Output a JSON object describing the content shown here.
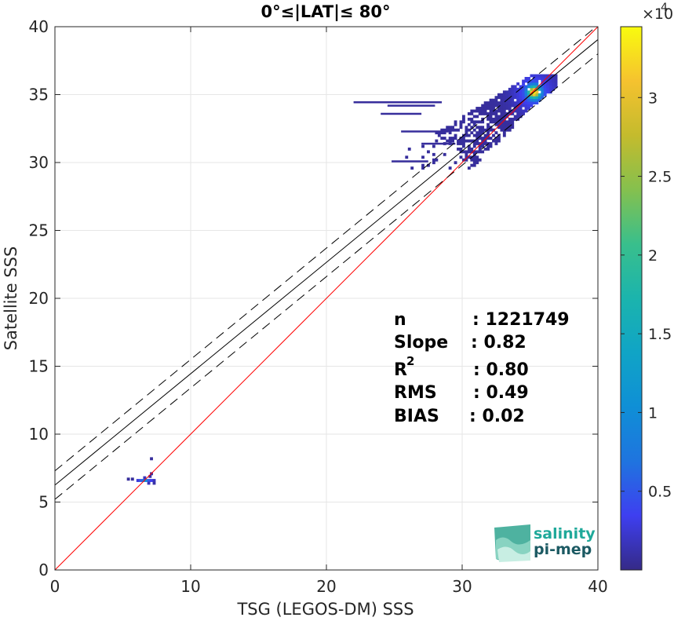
{
  "chart_data": {
    "type": "heatmap",
    "title": "0°≤|LAT|≤ 80°",
    "xlabel": "TSG (LEGOS-DM) SSS",
    "ylabel": "Satellite SSS",
    "xlim": [
      0,
      40
    ],
    "ylim": [
      0,
      40
    ],
    "xticks": [
      "0",
      "10",
      "20",
      "30",
      "40"
    ],
    "yticks": [
      "0",
      "5",
      "10",
      "15",
      "20",
      "25",
      "30",
      "35",
      "40"
    ],
    "grid": true,
    "colorbar": {
      "colormap": "parula",
      "range": [
        0,
        34500
      ],
      "multiplier_label": "×10",
      "multiplier_exponent": "4",
      "ticks": [
        0.5,
        1,
        1.5,
        2,
        2.5,
        3
      ],
      "tick_labels": [
        "0.5",
        "1",
        "1.5",
        "2",
        "2.5",
        "3"
      ]
    },
    "lines": [
      {
        "name": "1:1 line",
        "slope": 1.0,
        "intercept": 0.0,
        "color": "#ff0000",
        "style": "solid"
      },
      {
        "name": "regression",
        "slope": 0.82,
        "intercept": 6.25,
        "color": "#000000",
        "style": "solid"
      },
      {
        "name": "regression +RMS*2",
        "slope": 0.82,
        "intercept": 7.3,
        "color": "#000000",
        "style": "dashed"
      },
      {
        "name": "regression -RMS*2",
        "slope": 0.82,
        "intercept": 5.2,
        "color": "#000000",
        "style": "dashed"
      }
    ],
    "clusters": [
      {
        "name": "main",
        "x_range": [
          22.0,
          37.0
        ],
        "y_range": [
          29.5,
          36.5
        ],
        "peak": [
          35.2,
          35.1
        ]
      },
      {
        "name": "low",
        "x_range": [
          5.3,
          7.4
        ],
        "y_range": [
          6.3,
          8.1
        ],
        "peak": [
          6.6,
          6.5
        ]
      }
    ],
    "stats": {
      "labels": [
        "n",
        "Slope",
        "R",
        "RMS",
        "BIAS"
      ],
      "r_superscript": "2",
      "values": [
        ": 1221749",
        ": 0.82",
        ": 0.80",
        ": 0.49",
        ": 0.02"
      ]
    }
  },
  "logo": {
    "line1": "salinity",
    "line2": "pi-mep"
  }
}
